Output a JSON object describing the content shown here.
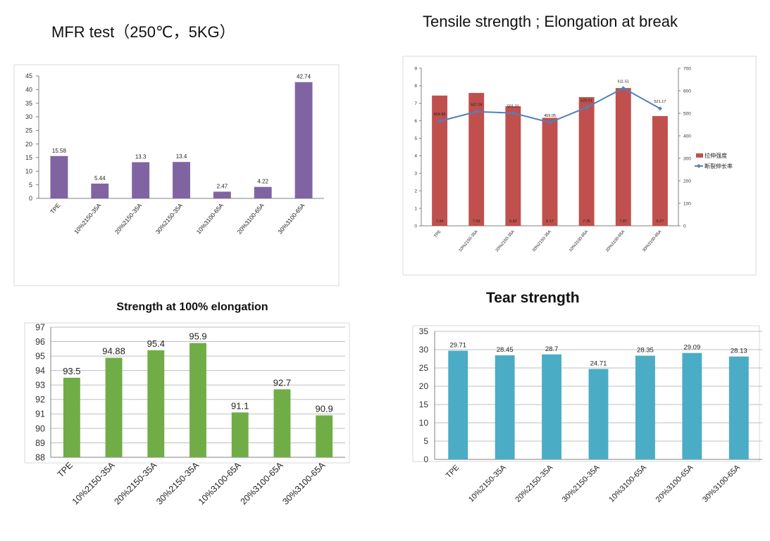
{
  "chart_data": [
    {
      "type": "bar",
      "title": "MFR test（250℃，5KG）",
      "categories": [
        "TPE",
        "10%2150-35A",
        "20%2150-35A",
        "30%2150-35A",
        "10%3100-65A",
        "20%3100-65A",
        "30%3100-65A"
      ],
      "values": [
        15.58,
        5.44,
        13.3,
        13.4,
        2.47,
        4.22,
        42.74
      ],
      "labels": [
        "15.58",
        "5.44",
        "13.3",
        "13.4",
        "2.47",
        "4.22",
        "42.74"
      ],
      "ylim": [
        0,
        45
      ],
      "yticks": [
        "0",
        "5",
        "10",
        "15",
        "20",
        "25",
        "30",
        "35",
        "40",
        "45"
      ],
      "grid": false,
      "color": "#8064a2"
    },
    {
      "type": "bar+line",
      "title": "Tensile strength ; Elongation at break",
      "categories": [
        "TPE",
        "10%2150-35A",
        "20%2150-35A",
        "30%2150-35A",
        "10%3100-65A",
        "20%3100-65A",
        "30%3100-65A"
      ],
      "series": [
        {
          "name": "拉伸强度",
          "type": "bar",
          "axis": "left",
          "color": "#c0504d",
          "values": [
            7.44,
            7.59,
            6.83,
            6.17,
            7.35,
            7.87,
            6.27
          ],
          "labels": [
            "7.44",
            "7.59",
            "6.83",
            "6.17",
            "7.35",
            "7.87",
            "6.27"
          ]
        },
        {
          "name": "断裂伸长率",
          "type": "line",
          "axis": "right",
          "color": "#4f81bd",
          "values": [
            464.89,
            507.09,
            501.21,
            459.05,
            525.91,
            611.51,
            521.17
          ],
          "labels": [
            "464.89",
            "507.09",
            "501.21",
            "459.05",
            "525.91",
            "611.51",
            "521.17"
          ]
        }
      ],
      "ylim_left": [
        0,
        9
      ],
      "yticks_left": [
        "0",
        "1",
        "2",
        "3",
        "4",
        "5",
        "6",
        "7",
        "8",
        "9"
      ],
      "ylim_right": [
        0,
        700
      ],
      "yticks_right": [
        "0",
        "100",
        "200",
        "300",
        "400",
        "500",
        "600",
        "700"
      ],
      "legend": "right",
      "grid": false
    },
    {
      "type": "bar",
      "title": "Strength at 100% elongation",
      "categories": [
        "TPE",
        "10%2150-35A",
        "20%2150-35A",
        "30%2150-35A",
        "10%3100-65A",
        "20%3100-65A",
        "30%3100-65A"
      ],
      "values": [
        93.5,
        94.88,
        95.4,
        95.9,
        91.1,
        92.7,
        90.9
      ],
      "labels": [
        "93.5",
        "94.88",
        "95.4",
        "95.9",
        "91.1",
        "92.7",
        "90.9"
      ],
      "ylim": [
        88,
        97
      ],
      "yticks": [
        "88",
        "89",
        "90",
        "91",
        "92",
        "93",
        "94",
        "95",
        "96",
        "97"
      ],
      "grid": true,
      "color": "#70ad47"
    },
    {
      "type": "bar",
      "title": "Tear strength",
      "categories": [
        "TPE",
        "10%2150-35A",
        "20%2150-35A",
        "30%2150-35A",
        "10%3100-65A",
        "20%3100-65A",
        "30%3100-65A"
      ],
      "values": [
        29.71,
        28.45,
        28.7,
        24.71,
        28.35,
        29.09,
        28.13
      ],
      "labels": [
        "29.71",
        "28.45",
        "28.7",
        "24.71",
        "28.35",
        "29.09",
        "28.13"
      ],
      "ylim": [
        0,
        35
      ],
      "yticks": [
        "0",
        "5",
        "10",
        "15",
        "20",
        "25",
        "30",
        "35"
      ],
      "grid": true,
      "color": "#4bacc6"
    }
  ]
}
